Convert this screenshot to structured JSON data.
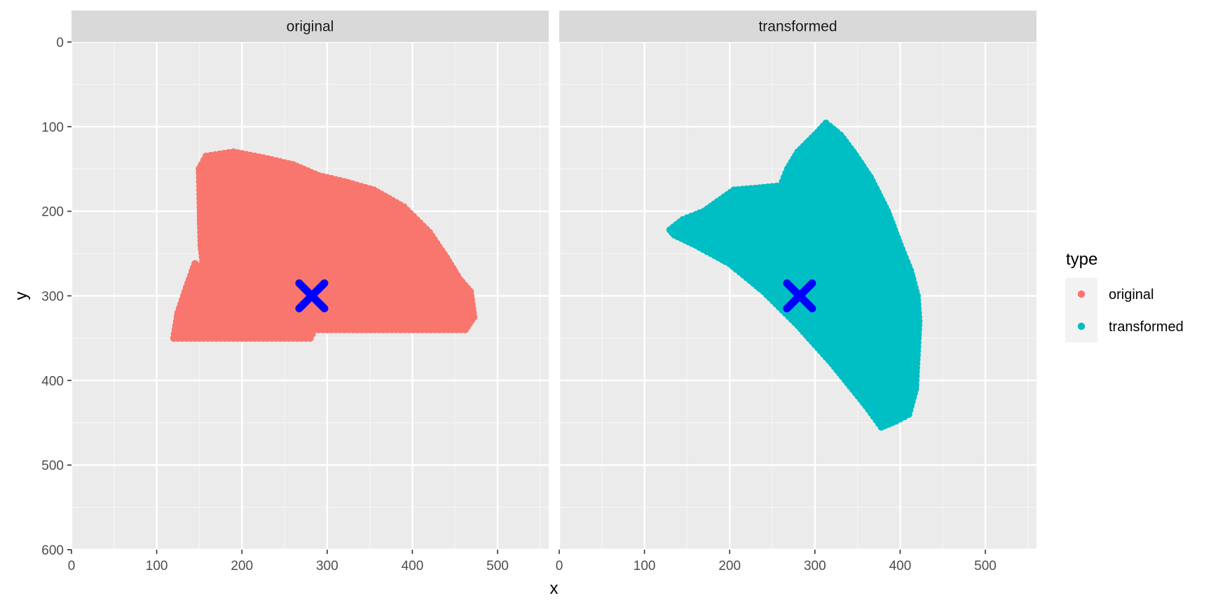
{
  "chart_data": {
    "type": "scatter",
    "facets": [
      "original",
      "transformed"
    ],
    "xlabel": "x",
    "ylabel": "y",
    "xlim": [
      0,
      560
    ],
    "ylim": [
      600,
      0
    ],
    "y_reversed": true,
    "x_ticks": [
      0,
      100,
      200,
      300,
      400,
      500
    ],
    "y_ticks": [
      0,
      100,
      200,
      300,
      400,
      500,
      600
    ],
    "grid": true,
    "legend": {
      "title": "type",
      "placement": "right",
      "entries": [
        {
          "label": "original",
          "color": "#F8766D"
        },
        {
          "label": "transformed",
          "color": "#00BFC4"
        }
      ]
    },
    "series": [
      {
        "name": "original",
        "facet": "original",
        "color": "#F8766D",
        "region_outline": [
          [
            120,
            350
          ],
          [
            125,
            320
          ],
          [
            135,
            290
          ],
          [
            145,
            262
          ],
          [
            155,
            268
          ],
          [
            152,
            240
          ],
          [
            150,
            150
          ],
          [
            158,
            135
          ],
          [
            190,
            130
          ],
          [
            230,
            138
          ],
          [
            260,
            145
          ],
          [
            290,
            158
          ],
          [
            320,
            165
          ],
          [
            355,
            175
          ],
          [
            390,
            195
          ],
          [
            420,
            225
          ],
          [
            440,
            255
          ],
          [
            455,
            280
          ],
          [
            468,
            295
          ],
          [
            472,
            325
          ],
          [
            462,
            340
          ],
          [
            285,
            340
          ],
          [
            280,
            350
          ]
        ]
      },
      {
        "name": "transformed",
        "facet": "transformed",
        "color": "#00BFC4",
        "region_outline": [
          [
            130,
            222
          ],
          [
            145,
            210
          ],
          [
            170,
            200
          ],
          [
            205,
            175
          ],
          [
            240,
            172
          ],
          [
            260,
            170
          ],
          [
            268,
            150
          ],
          [
            280,
            130
          ],
          [
            300,
            110
          ],
          [
            313,
            96
          ],
          [
            330,
            110
          ],
          [
            345,
            130
          ],
          [
            365,
            160
          ],
          [
            385,
            200
          ],
          [
            400,
            240
          ],
          [
            412,
            270
          ],
          [
            420,
            300
          ],
          [
            422,
            330
          ],
          [
            420,
            370
          ],
          [
            418,
            410
          ],
          [
            410,
            440
          ],
          [
            395,
            448
          ],
          [
            378,
            455
          ],
          [
            360,
            430
          ],
          [
            320,
            380
          ],
          [
            280,
            335
          ],
          [
            240,
            295
          ],
          [
            200,
            262
          ],
          [
            160,
            240
          ],
          [
            135,
            228
          ]
        ]
      }
    ],
    "centroids": [
      {
        "facet": "original",
        "x": 282,
        "y": 300,
        "marker": "x",
        "color": "#0000FF"
      },
      {
        "facet": "transformed",
        "x": 282,
        "y": 300,
        "marker": "x",
        "color": "#0000FF"
      }
    ]
  },
  "colors": {
    "panel_bg": "#EBEBEB",
    "strip_bg": "#D9D9D9",
    "grid_major": "#FFFFFF",
    "original": "#F8766D",
    "transformed": "#00BFC4",
    "centroid": "#0000FF"
  }
}
